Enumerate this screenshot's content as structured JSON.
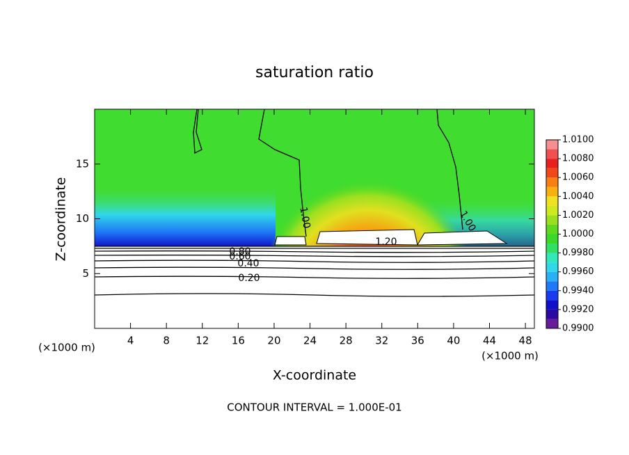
{
  "chart_data": {
    "type": "contour",
    "title": "saturation ratio",
    "x_label": "X-coordinate",
    "y_label": "Z-coordinate",
    "x_unit": "(×1000 m)",
    "y_unit": "(×1000 m)",
    "footer": "CONTOUR INTERVAL = 1.000E-01",
    "xlim": [
      0,
      49
    ],
    "xticks": [
      4,
      8,
      12,
      16,
      20,
      24,
      28,
      32,
      36,
      40,
      44,
      48
    ],
    "ylim": [
      0,
      20
    ],
    "yticks": [
      5,
      10,
      15
    ],
    "contour_labels": [
      "1.00",
      "1.00",
      "1.20",
      "0.80",
      "0.60",
      "0.40",
      "0.20"
    ],
    "colorbar_lim": [
      0.99,
      1.01
    ],
    "colorbar_ticks": [
      {
        "value": 0.99,
        "label": "0.9900"
      },
      {
        "value": 0.992,
        "label": "0.9920"
      },
      {
        "value": 0.994,
        "label": "0.9940"
      },
      {
        "value": 0.996,
        "label": "0.9960"
      },
      {
        "value": 0.998,
        "label": "0.9980"
      },
      {
        "value": 1.0,
        "label": "1.0000"
      },
      {
        "value": 1.002,
        "label": "1.0020"
      },
      {
        "value": 1.004,
        "label": "1.0040"
      },
      {
        "value": 1.006,
        "label": "1.0060"
      },
      {
        "value": 1.008,
        "label": "1.0080"
      },
      {
        "value": 1.01,
        "label": "1.0100"
      }
    ],
    "colorbar_colors": [
      "#6a1b9a",
      "#2a0aa0",
      "#1010c8",
      "#1a3af0",
      "#1e78f8",
      "#2ab0f4",
      "#30d8e8",
      "#30e8b8",
      "#30e060",
      "#3ad82a",
      "#60d820",
      "#9ae020",
      "#d0e820",
      "#f0e020",
      "#f8b010",
      "#f88010",
      "#f04818",
      "#e82020",
      "#f05050",
      "#f49090"
    ]
  }
}
